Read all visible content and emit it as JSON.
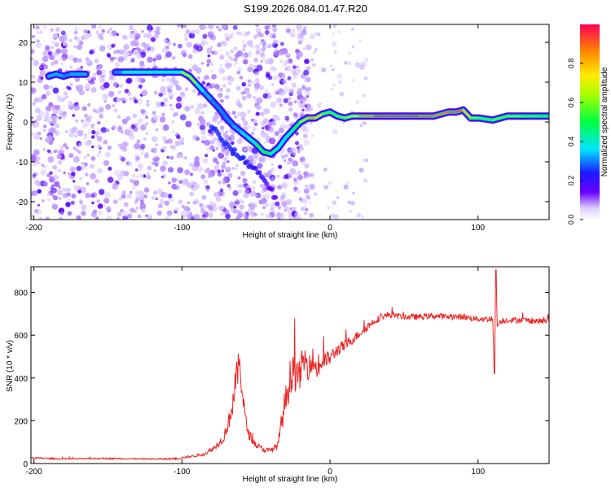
{
  "title": "S199.2026.084.01.47.R20",
  "chart_data": [
    {
      "type": "heatmap",
      "title": "S199.2026.084.01.47.R20",
      "xlabel": "Height of straight line (km)",
      "ylabel": "Frequency (Hz)",
      "xlim": [
        -202,
        148
      ],
      "ylim": [
        -24.5,
        24.5
      ],
      "x_ticks": [
        -200,
        -100,
        0,
        100
      ],
      "x_tick_labels": [
        "-200",
        "-100",
        "0",
        "100"
      ],
      "y_ticks": [
        -20,
        -10,
        0,
        10,
        20
      ],
      "y_tick_labels": [
        "-20",
        "-10",
        "0",
        "10",
        "20"
      ],
      "colorbar": {
        "label": "Normalized spectral amplitude",
        "range": [
          0,
          1
        ],
        "ticks": [
          0,
          0.2,
          0.4,
          0.6,
          0.8
        ],
        "tick_labels": [
          "0.0",
          "0.2",
          "0.4",
          "0.6",
          "0.8"
        ]
      },
      "ridge": {
        "x": [
          -200,
          -195,
          -190,
          -185,
          -180,
          -175,
          -170,
          -165,
          -160,
          -150,
          -145,
          -140,
          -100,
          -95,
          -90,
          -85,
          -80,
          -75,
          -70,
          -65,
          -60,
          -55,
          -50,
          -45,
          -40,
          -35,
          -30,
          -25,
          -20,
          -15,
          -10,
          -5,
          0,
          5,
          10,
          15,
          20,
          30,
          40,
          50,
          60,
          70,
          80,
          85,
          90,
          95,
          100,
          110,
          120,
          130,
          140,
          148
        ],
        "y": [
          null,
          null,
          11.5,
          12,
          11.5,
          12,
          12,
          12,
          null,
          null,
          12.5,
          12.5,
          12.5,
          11.5,
          9.5,
          7.5,
          5.5,
          3.5,
          1,
          -1,
          -2.5,
          -4,
          -5.5,
          -7.5,
          -8,
          -6.5,
          -4,
          -2,
          0,
          1,
          1,
          2,
          2.5,
          1.5,
          1,
          1.5,
          1.5,
          1.5,
          1.5,
          1.5,
          1.5,
          1.5,
          2.5,
          2.5,
          3,
          1,
          1,
          0.5,
          1.5,
          1.5,
          1.5,
          1.5
        ],
        "amplitude": [
          0,
          0,
          0.3,
          0.35,
          0.3,
          0.3,
          0.35,
          0.3,
          0,
          0,
          0.3,
          0.3,
          0.45,
          0.85,
          0.4,
          0.35,
          0.3,
          0.3,
          0.3,
          0.3,
          0.35,
          0.35,
          0.45,
          0.55,
          0.45,
          0.4,
          0.35,
          0.45,
          0.55,
          0.7,
          0.95,
          0.6,
          0.5,
          0.55,
          0.55,
          0.65,
          0.75,
          0.95,
          0.95,
          0.95,
          0.95,
          0.85,
          0.9,
          0.9,
          0.95,
          0.6,
          0.55,
          0.5,
          0.6,
          0.55,
          0.5,
          0.5
        ]
      },
      "branch": {
        "x": [
          -80,
          -70,
          -60,
          -50,
          -45,
          -40,
          -35
        ],
        "y": [
          -1,
          -6,
          -9,
          -12,
          -14,
          -17,
          -20.5
        ],
        "amplitude": [
          0.25,
          0.25,
          0.25,
          0.2,
          0.2,
          0.15,
          0.15
        ]
      }
    },
    {
      "type": "line",
      "xlabel": "Height of straight line (km)",
      "ylabel": "SNR (10 * v/v)",
      "xlim": [
        -202,
        148
      ],
      "ylim": [
        0,
        920
      ],
      "x_ticks": [
        -200,
        -100,
        0,
        100
      ],
      "x_tick_labels": [
        "-200",
        "-100",
        "0",
        "100"
      ],
      "y_ticks": [
        0,
        200,
        400,
        600,
        800
      ],
      "y_tick_labels": [
        "0",
        "200",
        "400",
        "600",
        "800"
      ],
      "series": [
        {
          "name": "SNR",
          "color": "#ee2222",
          "x": [
            -202,
            -180,
            -160,
            -140,
            -120,
            -105,
            -95,
            -85,
            -78,
            -72,
            -68,
            -65,
            -63,
            -61,
            -59,
            -57,
            -55,
            -52,
            -50,
            -45,
            -40,
            -35,
            -32,
            -28,
            -25,
            -22,
            -20,
            -18,
            -15,
            -12,
            -10,
            -8,
            -5,
            -2,
            0,
            5,
            10,
            15,
            20,
            25,
            30,
            35,
            40,
            45,
            50,
            60,
            70,
            80,
            90,
            100,
            105,
            110,
            111,
            112,
            113,
            115,
            120,
            130,
            140,
            145,
            148
          ],
          "y": [
            25,
            20,
            22,
            22,
            20,
            20,
            30,
            40,
            70,
            110,
            190,
            280,
            380,
            440,
            300,
            180,
            130,
            100,
            80,
            60,
            55,
            80,
            200,
            330,
            420,
            360,
            400,
            460,
            430,
            470,
            430,
            420,
            460,
            470,
            480,
            520,
            540,
            570,
            600,
            630,
            660,
            680,
            690,
            685,
            680,
            680,
            685,
            680,
            680,
            670,
            670,
            670,
            420,
            905,
            640,
            660,
            665,
            665,
            660,
            660,
            665
          ],
          "noise": [
            8,
            6,
            6,
            6,
            6,
            8,
            12,
            15,
            25,
            45,
            80,
            140,
            150,
            150,
            130,
            80,
            50,
            35,
            30,
            25,
            25,
            40,
            120,
            170,
            200,
            160,
            140,
            140,
            140,
            120,
            110,
            100,
            90,
            80,
            70,
            60,
            55,
            45,
            40,
            40,
            35,
            30,
            30,
            28,
            28,
            28,
            28,
            28,
            28,
            28,
            28,
            28,
            0,
            0,
            0,
            28,
            28,
            28,
            28,
            28,
            28
          ]
        }
      ]
    }
  ]
}
